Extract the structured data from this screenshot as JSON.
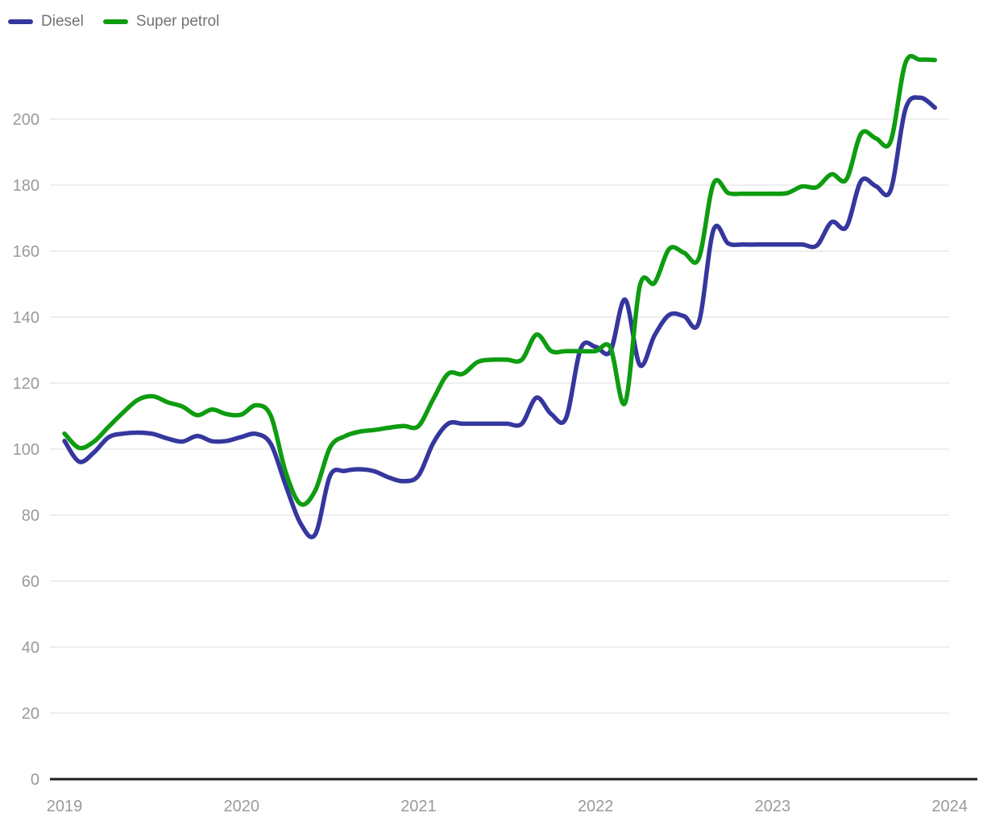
{
  "legend": {
    "items": [
      {
        "label": "Diesel",
        "color": "#35379e"
      },
      {
        "label": "Super petrol",
        "color": "#0e9c10"
      }
    ]
  },
  "colors": {
    "background": "#ffffff",
    "gridline": "#e8e8e8",
    "axis_line": "#1d1d1d",
    "tick_label": "#9a9a9a",
    "legend_text": "#737373"
  },
  "chart_data": {
    "type": "line",
    "title": "",
    "xlabel": "",
    "ylabel": "",
    "x_tick_labels": [
      "2019",
      "2020",
      "2021",
      "2022",
      "2023",
      "2024"
    ],
    "y_ticks": [
      0,
      20,
      40,
      60,
      80,
      100,
      120,
      140,
      160,
      180,
      200
    ],
    "ylim": [
      0,
      220
    ],
    "grid": "horizontal",
    "legend_position": "top-left",
    "x": [
      "2019-01",
      "2019-02",
      "2019-03",
      "2019-04",
      "2019-05",
      "2019-06",
      "2019-07",
      "2019-08",
      "2019-09",
      "2019-10",
      "2019-11",
      "2019-12",
      "2020-01",
      "2020-02",
      "2020-03",
      "2020-04",
      "2020-05",
      "2020-06",
      "2020-07",
      "2020-08",
      "2020-09",
      "2020-10",
      "2020-11",
      "2020-12",
      "2021-01",
      "2021-02",
      "2021-03",
      "2021-04",
      "2021-05",
      "2021-06",
      "2021-07",
      "2021-08",
      "2021-09",
      "2021-10",
      "2021-11",
      "2021-12",
      "2022-01",
      "2022-02",
      "2022-03",
      "2022-04",
      "2022-05",
      "2022-06",
      "2022-07",
      "2022-08",
      "2022-09",
      "2022-10",
      "2022-11",
      "2022-12",
      "2023-01",
      "2023-02",
      "2023-03",
      "2023-04",
      "2023-05",
      "2023-06",
      "2023-07",
      "2023-08",
      "2023-09",
      "2023-10",
      "2023-11",
      "2023-12"
    ],
    "series": [
      {
        "name": "Diesel",
        "color": "#35379e",
        "values": [
          102.5,
          96.2,
          99.0,
          103.6,
          104.7,
          105.0,
          104.6,
          103.2,
          102.3,
          104.0,
          102.4,
          102.5,
          103.7,
          104.6,
          101.5,
          89.0,
          77.5,
          74.2,
          91.9,
          93.4,
          93.9,
          93.3,
          91.4,
          90.3,
          92.0,
          101.9,
          107.7,
          107.7,
          107.7,
          107.7,
          107.7,
          107.7,
          115.6,
          110.6,
          109.4,
          130.5,
          131.0,
          129.6,
          145.3,
          125.5,
          134.5,
          140.7,
          140.3,
          138.4,
          166.5,
          162.3,
          162.0,
          162.0,
          162.0,
          162.0,
          162.0,
          161.7,
          168.8,
          167.3,
          181.3,
          179.7,
          178.5,
          203.0,
          206.5,
          203.5
        ]
      },
      {
        "name": "Super petrol",
        "color": "#0e9c10",
        "values": [
          104.7,
          100.4,
          102.3,
          106.8,
          111.2,
          115.0,
          116.0,
          114.2,
          112.9,
          110.3,
          112.0,
          110.6,
          110.5,
          113.3,
          110.0,
          93.0,
          83.4,
          87.5,
          100.5,
          103.9,
          105.3,
          105.8,
          106.5,
          107.0,
          107.0,
          115.2,
          122.8,
          122.8,
          126.4,
          127.1,
          127.1,
          127.1,
          134.7,
          129.7,
          129.7,
          129.7,
          129.7,
          130.8,
          114.0,
          149.5,
          150.4,
          160.7,
          159.5,
          157.8,
          180.5,
          177.6,
          177.4,
          177.4,
          177.4,
          177.6,
          179.6,
          179.4,
          183.3,
          181.7,
          195.6,
          194.2,
          193.3,
          217.0,
          218.0,
          217.9
        ]
      }
    ]
  }
}
